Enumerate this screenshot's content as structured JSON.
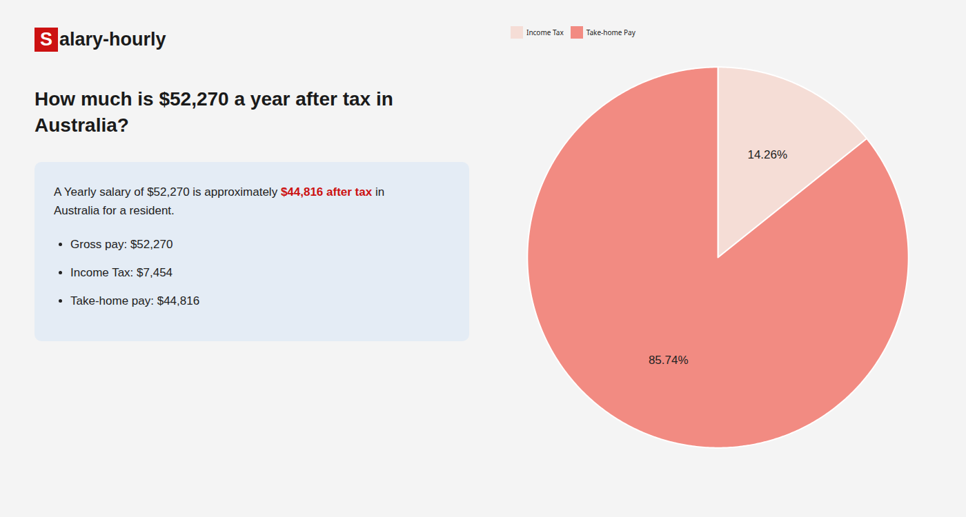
{
  "chart_data": {
    "type": "pie",
    "title": "How much is $52,270 a year after tax in Australia?",
    "categories": [
      "Income Tax",
      "Take-home Pay"
    ],
    "values": [
      14.26,
      85.74
    ],
    "value_labels": [
      "14.26%",
      "85.74%"
    ],
    "colors": [
      "#f5ddd6",
      "#f28b82"
    ],
    "data_labels": true,
    "legend": "upper left",
    "annotations": [
      "S",
      "alary-hourly",
      "A Yearly salary of $52,270 is approximately",
      "$44,816 after tax",
      "in",
      "Australia for a resident.",
      "Gross pay: $52,270",
      "Income Tax: $7,454",
      "Take-home pay: $44,816"
    ]
  }
}
